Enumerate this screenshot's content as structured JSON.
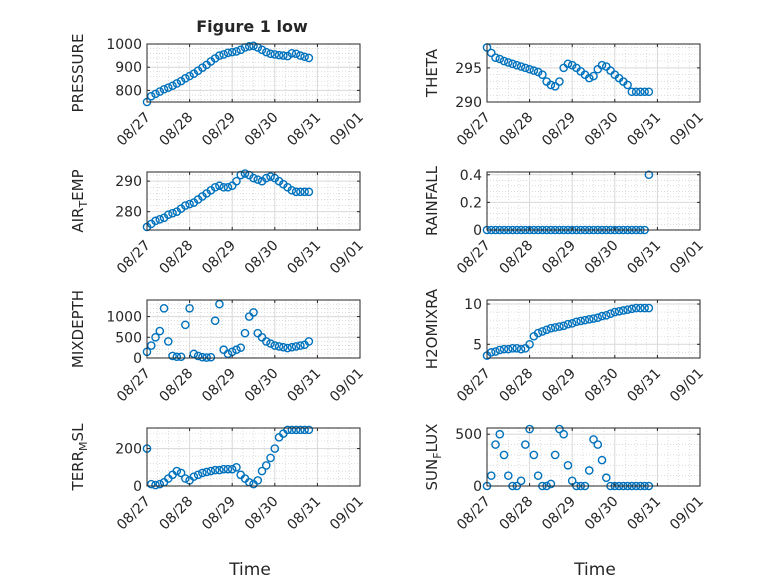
{
  "figure": {
    "title": "Figure 1 low",
    "xlabel": "Time"
  },
  "colors": {
    "series": "#0072BD",
    "axis": "#262626",
    "grid": "#d9d9d9",
    "minor_grid": "#c8c8c8"
  },
  "chart_data": [
    {
      "type": "scatter",
      "ylabel": "PRESSURE",
      "xlim": [
        0,
        5
      ],
      "ylim": [
        750,
        1000
      ],
      "yticks": [
        800,
        900,
        1000
      ],
      "yticklabels": [
        "800",
        "900",
        "1000"
      ],
      "xticks": [
        0,
        1,
        2,
        3,
        4,
        5
      ],
      "xticklabels": [
        "08/27",
        "08/28",
        "08/29",
        "08/30",
        "08/31",
        "09/01"
      ],
      "x": [
        0,
        0.1,
        0.2,
        0.3,
        0.4,
        0.5,
        0.6,
        0.7,
        0.8,
        0.9,
        1.0,
        1.1,
        1.2,
        1.3,
        1.4,
        1.5,
        1.6,
        1.7,
        1.8,
        1.9,
        2.0,
        2.1,
        2.2,
        2.3,
        2.4,
        2.5,
        2.6,
        2.7,
        2.8,
        2.9,
        3.0,
        3.1,
        3.2,
        3.3,
        3.4,
        3.5,
        3.6,
        3.7,
        3.8
      ],
      "y": [
        750,
        775,
        785,
        795,
        805,
        812,
        820,
        830,
        840,
        852,
        862,
        872,
        885,
        898,
        910,
        925,
        938,
        950,
        955,
        962,
        965,
        968,
        975,
        985,
        990,
        992,
        985,
        975,
        965,
        958,
        955,
        952,
        950,
        948,
        960,
        958,
        950,
        945,
        940
      ]
    },
    {
      "type": "scatter",
      "ylabel": "THETA",
      "xlim": [
        0,
        5
      ],
      "ylim": [
        290,
        298.5
      ],
      "yticks": [
        290,
        295
      ],
      "yticklabels": [
        "290",
        "295"
      ],
      "xticks": [
        0,
        1,
        2,
        3,
        4,
        5
      ],
      "xticklabels": [
        "08/27",
        "08/28",
        "08/29",
        "08/30",
        "08/31",
        "09/01"
      ],
      "x": [
        0,
        0.1,
        0.2,
        0.3,
        0.4,
        0.5,
        0.6,
        0.7,
        0.8,
        0.9,
        1.0,
        1.1,
        1.2,
        1.3,
        1.4,
        1.5,
        1.6,
        1.7,
        1.8,
        1.9,
        2.0,
        2.1,
        2.2,
        2.3,
        2.4,
        2.5,
        2.6,
        2.7,
        2.8,
        2.9,
        3.0,
        3.1,
        3.2,
        3.3,
        3.4,
        3.5,
        3.6,
        3.7,
        3.8
      ],
      "y": [
        298,
        297.2,
        296.5,
        296.3,
        296.0,
        295.8,
        295.6,
        295.4,
        295.2,
        295.0,
        294.8,
        294.6,
        294.4,
        294.0,
        293.0,
        292.5,
        292.3,
        293.0,
        295.0,
        295.6,
        295.4,
        295.0,
        294.5,
        294.0,
        293.5,
        293.8,
        294.8,
        295.4,
        295.2,
        294.6,
        294.0,
        293.5,
        293.0,
        292.5,
        291.5,
        291.5,
        291.5,
        291.5,
        291.5
      ]
    },
    {
      "type": "scatter",
      "ylabel": "AIR_TEMP",
      "xlim": [
        0,
        5
      ],
      "ylim": [
        274,
        293
      ],
      "yticks": [
        280,
        290
      ],
      "yticklabels": [
        "280",
        "290"
      ],
      "xticks": [
        0,
        1,
        2,
        3,
        4,
        5
      ],
      "xticklabels": [
        "08/27",
        "08/28",
        "08/29",
        "08/30",
        "08/31",
        "09/01"
      ],
      "x": [
        0,
        0.1,
        0.2,
        0.3,
        0.4,
        0.5,
        0.6,
        0.7,
        0.8,
        0.9,
        1.0,
        1.1,
        1.2,
        1.3,
        1.4,
        1.5,
        1.6,
        1.7,
        1.8,
        1.9,
        2.0,
        2.1,
        2.2,
        2.3,
        2.4,
        2.5,
        2.6,
        2.7,
        2.8,
        2.9,
        3.0,
        3.1,
        3.2,
        3.3,
        3.4,
        3.5,
        3.6,
        3.7,
        3.8
      ],
      "y": [
        275,
        276,
        277,
        277.5,
        278,
        279,
        279.5,
        280,
        281,
        282,
        282.5,
        283,
        284,
        285,
        286,
        287,
        288,
        288.5,
        288,
        288,
        288.5,
        290,
        292,
        292.5,
        292,
        291,
        290.5,
        290,
        291,
        291.5,
        291,
        290,
        289,
        288,
        287,
        286.5,
        286.5,
        286.5,
        286.5
      ]
    },
    {
      "type": "scatter",
      "ylabel": "RAINFALL",
      "xlim": [
        0,
        5
      ],
      "ylim": [
        0,
        0.42
      ],
      "yticks": [
        0,
        0.2,
        0.4
      ],
      "yticklabels": [
        "0",
        "0.2",
        "0.4"
      ],
      "xticks": [
        0,
        1,
        2,
        3,
        4,
        5
      ],
      "xticklabels": [
        "08/27",
        "08/28",
        "08/29",
        "08/30",
        "08/31",
        "09/01"
      ],
      "x": [
        0,
        0.1,
        0.2,
        0.3,
        0.4,
        0.5,
        0.6,
        0.7,
        0.8,
        0.9,
        1.0,
        1.1,
        1.2,
        1.3,
        1.4,
        1.5,
        1.6,
        1.7,
        1.8,
        1.9,
        2.0,
        2.1,
        2.2,
        2.3,
        2.4,
        2.5,
        2.6,
        2.7,
        2.8,
        2.9,
        3.0,
        3.1,
        3.2,
        3.3,
        3.4,
        3.5,
        3.6,
        3.7,
        3.8
      ],
      "y": [
        0,
        0,
        0,
        0,
        0,
        0,
        0,
        0,
        0,
        0,
        0,
        0,
        0,
        0,
        0,
        0,
        0,
        0,
        0,
        0,
        0,
        0,
        0,
        0,
        0,
        0,
        0,
        0,
        0,
        0,
        0,
        0,
        0,
        0,
        0,
        0,
        0,
        0,
        0.4
      ]
    },
    {
      "type": "scatter",
      "ylabel": "MIXDEPTH",
      "xlim": [
        0,
        5
      ],
      "ylim": [
        0,
        1400
      ],
      "yticks": [
        0,
        500,
        1000
      ],
      "yticklabels": [
        "0",
        "500",
        "1000"
      ],
      "xticks": [
        0,
        1,
        2,
        3,
        4,
        5
      ],
      "xticklabels": [
        "08/27",
        "08/28",
        "08/29",
        "08/30",
        "08/31",
        "09/01"
      ],
      "x": [
        0,
        0.1,
        0.2,
        0.3,
        0.4,
        0.5,
        0.6,
        0.7,
        0.8,
        0.9,
        1.0,
        1.1,
        1.2,
        1.3,
        1.4,
        1.5,
        1.6,
        1.7,
        1.8,
        1.9,
        2.0,
        2.1,
        2.2,
        2.3,
        2.4,
        2.5,
        2.6,
        2.7,
        2.8,
        2.9,
        3.0,
        3.1,
        3.2,
        3.3,
        3.4,
        3.5,
        3.6,
        3.7,
        3.8
      ],
      "y": [
        150,
        300,
        500,
        650,
        1200,
        400,
        50,
        30,
        30,
        800,
        1200,
        100,
        50,
        20,
        10,
        20,
        900,
        1300,
        200,
        100,
        150,
        200,
        250,
        600,
        1000,
        1100,
        600,
        500,
        400,
        350,
        300,
        280,
        260,
        240,
        260,
        280,
        300,
        320,
        400
      ]
    },
    {
      "type": "scatter",
      "ylabel": "H2OMIXRA",
      "xlim": [
        0,
        5
      ],
      "ylim": [
        3.3,
        10.5
      ],
      "yticks": [
        5,
        10
      ],
      "yticklabels": [
        "5",
        "10"
      ],
      "xticks": [
        0,
        1,
        2,
        3,
        4,
        5
      ],
      "xticklabels": [
        "08/27",
        "08/28",
        "08/29",
        "08/30",
        "08/31",
        "09/01"
      ],
      "x": [
        0,
        0.1,
        0.2,
        0.3,
        0.4,
        0.5,
        0.6,
        0.7,
        0.8,
        0.9,
        1.0,
        1.1,
        1.2,
        1.3,
        1.4,
        1.5,
        1.6,
        1.7,
        1.8,
        1.9,
        2.0,
        2.1,
        2.2,
        2.3,
        2.4,
        2.5,
        2.6,
        2.7,
        2.8,
        2.9,
        3.0,
        3.1,
        3.2,
        3.3,
        3.4,
        3.5,
        3.6,
        3.7,
        3.8
      ],
      "y": [
        3.6,
        4,
        4.1,
        4.3,
        4.4,
        4.4,
        4.5,
        4.5,
        4.4,
        4.5,
        5,
        6,
        6.4,
        6.6,
        6.8,
        7,
        7.1,
        7.2,
        7.3,
        7.5,
        7.6,
        7.8,
        7.9,
        8,
        8.1,
        8.2,
        8.3,
        8.5,
        8.6,
        8.8,
        9,
        9.1,
        9.2,
        9.3,
        9.4,
        9.5,
        9.5,
        9.5,
        9.5
      ]
    },
    {
      "type": "scatter",
      "ylabel": "TERR_MSL",
      "xlim": [
        0,
        5
      ],
      "ylim": [
        0,
        310
      ],
      "yticks": [
        0,
        200
      ],
      "yticklabels": [
        "0",
        "200"
      ],
      "xticks": [
        0,
        1,
        2,
        3,
        4,
        5
      ],
      "xticklabels": [
        "08/27",
        "08/28",
        "08/29",
        "08/30",
        "08/31",
        "09/01"
      ],
      "x": [
        0,
        0.1,
        0.2,
        0.3,
        0.4,
        0.5,
        0.6,
        0.7,
        0.8,
        0.9,
        1.0,
        1.1,
        1.2,
        1.3,
        1.4,
        1.5,
        1.6,
        1.7,
        1.8,
        1.9,
        2.0,
        2.1,
        2.2,
        2.3,
        2.4,
        2.5,
        2.6,
        2.7,
        2.8,
        2.9,
        3.0,
        3.1,
        3.2,
        3.3,
        3.4,
        3.5,
        3.6,
        3.7,
        3.8
      ],
      "y": [
        200,
        10,
        5,
        10,
        20,
        40,
        60,
        80,
        70,
        40,
        30,
        50,
        60,
        70,
        75,
        80,
        85,
        85,
        90,
        90,
        90,
        100,
        60,
        40,
        20,
        10,
        30,
        80,
        110,
        150,
        200,
        260,
        280,
        300,
        300,
        300,
        300,
        300,
        300
      ]
    },
    {
      "type": "scatter",
      "ylabel": "SUN_FLUX",
      "xlim": [
        0,
        5
      ],
      "ylim": [
        0,
        560
      ],
      "yticks": [
        0,
        500
      ],
      "yticklabels": [
        "0",
        "500"
      ],
      "xticks": [
        0,
        1,
        2,
        3,
        4,
        5
      ],
      "xticklabels": [
        "08/27",
        "08/28",
        "08/29",
        "08/30",
        "08/31",
        "09/01"
      ],
      "x": [
        0,
        0.1,
        0.2,
        0.3,
        0.4,
        0.5,
        0.6,
        0.7,
        0.8,
        0.9,
        1.0,
        1.1,
        1.2,
        1.3,
        1.4,
        1.5,
        1.6,
        1.7,
        1.8,
        1.9,
        2.0,
        2.1,
        2.2,
        2.3,
        2.4,
        2.5,
        2.6,
        2.7,
        2.8,
        2.9,
        3.0,
        3.1,
        3.2,
        3.3,
        3.4,
        3.5,
        3.6,
        3.7,
        3.8
      ],
      "y": [
        0,
        100,
        400,
        500,
        300,
        100,
        0,
        0,
        50,
        400,
        550,
        300,
        100,
        0,
        0,
        20,
        300,
        550,
        500,
        200,
        50,
        0,
        0,
        0,
        150,
        450,
        400,
        250,
        80,
        0,
        0,
        0,
        0,
        0,
        0,
        0,
        0,
        0,
        0
      ]
    }
  ]
}
